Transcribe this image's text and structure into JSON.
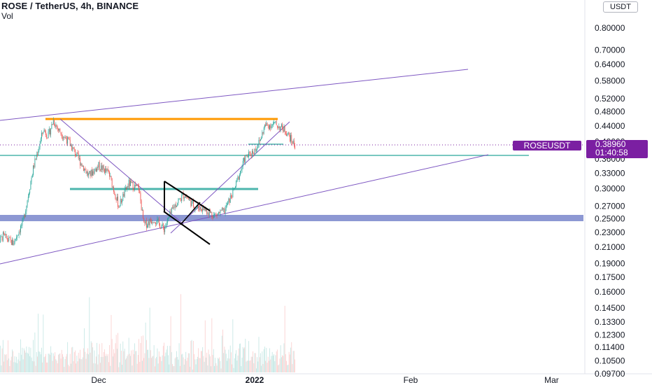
{
  "header": {
    "title": "ROSE / TetherUS, 4h, BINANCE",
    "volume_label": "Vol"
  },
  "price_scale": {
    "unit": "USDT",
    "current_price": "0.38960",
    "countdown": "01:40:58",
    "symbol_tag": "ROSEUSDT"
  },
  "colors": {
    "up": "#26a69a",
    "down": "#ef5350",
    "trendline": "#7e57c2",
    "resistance": "#ff9800",
    "support_band": "#7986cb",
    "teal_level": "#4db6ac",
    "label_bg": "#7b1fa2"
  },
  "chart_data": {
    "type": "candlestick",
    "title": "ROSE / TetherUS, 4h, BINANCE",
    "scale": "log",
    "ylim": [
      0.097,
      1.0
    ],
    "y_ticks": [
      "0.80000",
      "0.70000",
      "0.64000",
      "0.58000",
      "0.52000",
      "0.48000",
      "0.44000",
      "0.40000",
      "0.36000",
      "0.33000",
      "0.30000",
      "0.27000",
      "0.25000",
      "0.23000",
      "0.21000",
      "0.19000",
      "0.17500",
      "0.16000",
      "0.14500",
      "0.13300",
      "0.12300",
      "0.11400",
      "0.10500",
      "0.09700"
    ],
    "x_ticks": [
      "Dec",
      "2022",
      "Feb",
      "Mar"
    ],
    "price_path": [
      [
        "2021-11-10",
        0.205
      ],
      [
        "2021-11-12",
        0.225
      ],
      [
        "2021-11-14",
        0.215
      ],
      [
        "2021-11-16",
        0.245
      ],
      [
        "2021-11-18",
        0.34
      ],
      [
        "2021-11-20",
        0.43
      ],
      [
        "2021-11-21",
        0.415
      ],
      [
        "2021-11-22",
        0.455
      ],
      [
        "2021-11-23",
        0.43
      ],
      [
        "2021-11-25",
        0.4
      ],
      [
        "2021-11-27",
        0.36
      ],
      [
        "2021-11-29",
        0.325
      ],
      [
        "2021-12-01",
        0.345
      ],
      [
        "2021-12-03",
        0.33
      ],
      [
        "2021-12-05",
        0.27
      ],
      [
        "2021-12-07",
        0.31
      ],
      [
        "2021-12-09",
        0.3
      ],
      [
        "2021-12-10",
        0.24
      ],
      [
        "2021-12-12",
        0.25
      ],
      [
        "2021-12-14",
        0.235
      ],
      [
        "2021-12-16",
        0.27
      ],
      [
        "2021-12-18",
        0.29
      ],
      [
        "2021-12-20",
        0.27
      ],
      [
        "2021-12-22",
        0.265
      ],
      [
        "2021-12-24",
        0.255
      ],
      [
        "2021-12-26",
        0.262
      ],
      [
        "2021-12-28",
        0.3
      ],
      [
        "2021-12-30",
        0.36
      ],
      [
        "2022-01-01",
        0.38
      ],
      [
        "2022-01-02",
        0.4
      ],
      [
        "2022-01-03",
        0.44
      ],
      [
        "2022-01-05",
        0.445
      ],
      [
        "2022-01-07",
        0.43
      ],
      [
        "2022-01-08",
        0.41
      ],
      [
        "2022-01-09",
        0.3896
      ]
    ],
    "horizontal_levels": [
      {
        "value": 0.46,
        "color": "#ff9800"
      },
      {
        "value": 0.296,
        "color": "#4db6ac"
      },
      {
        "value": 0.364,
        "color": "#4db6ac"
      },
      {
        "value": 0.25,
        "color": "#7986cb"
      }
    ],
    "volume": {
      "visible": true,
      "note": "volume histogram shown beneath price bars"
    },
    "last_price": 0.3896
  }
}
